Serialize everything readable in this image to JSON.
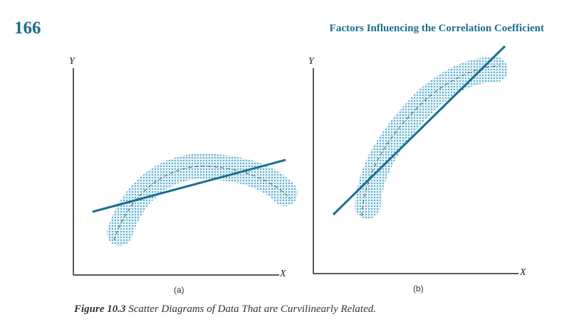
{
  "header": {
    "page_number": "166",
    "running_title": "Factors Influencing the Correlation Coefficient"
  },
  "figure": {
    "label": "Figure 10.3",
    "caption": "Scatter Diagrams of Data That are Curvilinearly Related.",
    "panels": [
      {
        "sublabel": "(a)",
        "x_axis": "X",
        "y_axis": "Y"
      },
      {
        "sublabel": "(b)",
        "x_axis": "X",
        "y_axis": "Y"
      }
    ]
  },
  "colors": {
    "accent": "#1a6f8f",
    "dots": "#4fa9c9"
  }
}
